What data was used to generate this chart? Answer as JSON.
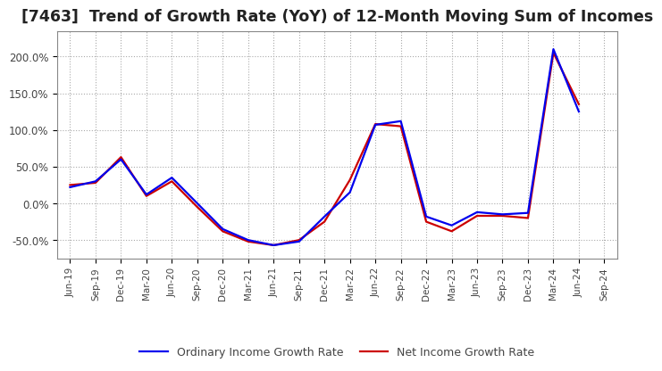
{
  "title": "[7463]  Trend of Growth Rate (YoY) of 12-Month Moving Sum of Incomes",
  "title_fontsize": 12.5,
  "ylim": [
    -75,
    235
  ],
  "yticks": [
    -50,
    0,
    50,
    100,
    150,
    200
  ],
  "ytick_labels": [
    "-50.0%",
    "0.0%",
    "50.0%",
    "100.0%",
    "150.0%",
    "200.0%"
  ],
  "background_color": "#ffffff",
  "plot_bg_color": "#ffffff",
  "grid_color": "#aaaaaa",
  "ordinary_color": "#0000ee",
  "net_color": "#cc0000",
  "legend_ordinary": "Ordinary Income Growth Rate",
  "legend_net": "Net Income Growth Rate",
  "xtick_labels": [
    "Jun-19",
    "Sep-19",
    "Dec-19",
    "Mar-20",
    "Jun-20",
    "Sep-20",
    "Dec-20",
    "Mar-21",
    "Jun-21",
    "Sep-21",
    "Dec-21",
    "Mar-22",
    "Jun-22",
    "Sep-22",
    "Dec-22",
    "Mar-23",
    "Jun-23",
    "Sep-23",
    "Dec-23",
    "Mar-24",
    "Jun-24",
    "Sep-24"
  ],
  "ordinary": [
    22,
    30,
    60,
    12,
    35,
    0,
    -35,
    -50,
    -57,
    -52,
    -18,
    15,
    107,
    112,
    -18,
    -30,
    -12,
    -15,
    -13,
    210,
    125,
    null
  ],
  "net": [
    25,
    28,
    63,
    10,
    30,
    -5,
    -38,
    -52,
    -57,
    -50,
    -25,
    32,
    108,
    105,
    -25,
    -38,
    -17,
    -17,
    -20,
    205,
    135,
    null
  ],
  "line_width": 1.6
}
